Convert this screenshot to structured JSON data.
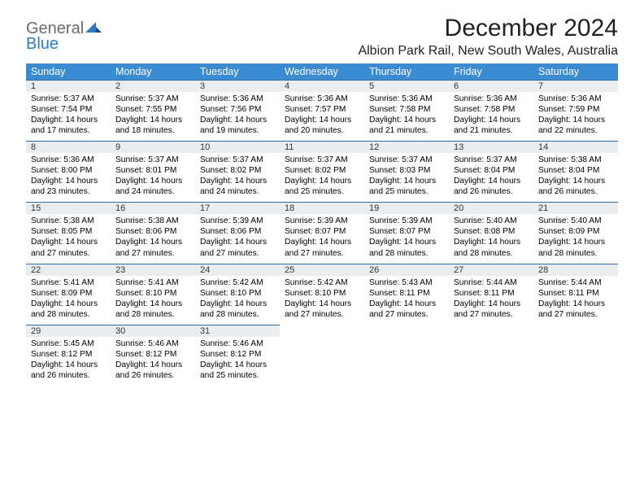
{
  "brand": {
    "word1": "General",
    "word2": "Blue"
  },
  "title": "December 2024",
  "location": "Albion Park Rail, New South Wales, Australia",
  "colors": {
    "header_bg": "#3b8bd0",
    "daynum_bg": "#e9edf0",
    "daynum_border": "#2f6aa3",
    "brand_gray": "#6a6a6a",
    "brand_blue": "#2f78c4"
  },
  "weekdays": [
    "Sunday",
    "Monday",
    "Tuesday",
    "Wednesday",
    "Thursday",
    "Friday",
    "Saturday"
  ],
  "days": [
    {
      "n": "1",
      "sr": "5:37 AM",
      "ss": "7:54 PM",
      "dl": "14 hours and 17 minutes."
    },
    {
      "n": "2",
      "sr": "5:37 AM",
      "ss": "7:55 PM",
      "dl": "14 hours and 18 minutes."
    },
    {
      "n": "3",
      "sr": "5:36 AM",
      "ss": "7:56 PM",
      "dl": "14 hours and 19 minutes."
    },
    {
      "n": "4",
      "sr": "5:36 AM",
      "ss": "7:57 PM",
      "dl": "14 hours and 20 minutes."
    },
    {
      "n": "5",
      "sr": "5:36 AM",
      "ss": "7:58 PM",
      "dl": "14 hours and 21 minutes."
    },
    {
      "n": "6",
      "sr": "5:36 AM",
      "ss": "7:58 PM",
      "dl": "14 hours and 21 minutes."
    },
    {
      "n": "7",
      "sr": "5:36 AM",
      "ss": "7:59 PM",
      "dl": "14 hours and 22 minutes."
    },
    {
      "n": "8",
      "sr": "5:36 AM",
      "ss": "8:00 PM",
      "dl": "14 hours and 23 minutes."
    },
    {
      "n": "9",
      "sr": "5:37 AM",
      "ss": "8:01 PM",
      "dl": "14 hours and 24 minutes."
    },
    {
      "n": "10",
      "sr": "5:37 AM",
      "ss": "8:02 PM",
      "dl": "14 hours and 24 minutes."
    },
    {
      "n": "11",
      "sr": "5:37 AM",
      "ss": "8:02 PM",
      "dl": "14 hours and 25 minutes."
    },
    {
      "n": "12",
      "sr": "5:37 AM",
      "ss": "8:03 PM",
      "dl": "14 hours and 25 minutes."
    },
    {
      "n": "13",
      "sr": "5:37 AM",
      "ss": "8:04 PM",
      "dl": "14 hours and 26 minutes."
    },
    {
      "n": "14",
      "sr": "5:38 AM",
      "ss": "8:04 PM",
      "dl": "14 hours and 26 minutes."
    },
    {
      "n": "15",
      "sr": "5:38 AM",
      "ss": "8:05 PM",
      "dl": "14 hours and 27 minutes."
    },
    {
      "n": "16",
      "sr": "5:38 AM",
      "ss": "8:06 PM",
      "dl": "14 hours and 27 minutes."
    },
    {
      "n": "17",
      "sr": "5:39 AM",
      "ss": "8:06 PM",
      "dl": "14 hours and 27 minutes."
    },
    {
      "n": "18",
      "sr": "5:39 AM",
      "ss": "8:07 PM",
      "dl": "14 hours and 27 minutes."
    },
    {
      "n": "19",
      "sr": "5:39 AM",
      "ss": "8:07 PM",
      "dl": "14 hours and 28 minutes."
    },
    {
      "n": "20",
      "sr": "5:40 AM",
      "ss": "8:08 PM",
      "dl": "14 hours and 28 minutes."
    },
    {
      "n": "21",
      "sr": "5:40 AM",
      "ss": "8:09 PM",
      "dl": "14 hours and 28 minutes."
    },
    {
      "n": "22",
      "sr": "5:41 AM",
      "ss": "8:09 PM",
      "dl": "14 hours and 28 minutes."
    },
    {
      "n": "23",
      "sr": "5:41 AM",
      "ss": "8:10 PM",
      "dl": "14 hours and 28 minutes."
    },
    {
      "n": "24",
      "sr": "5:42 AM",
      "ss": "8:10 PM",
      "dl": "14 hours and 28 minutes."
    },
    {
      "n": "25",
      "sr": "5:42 AM",
      "ss": "8:10 PM",
      "dl": "14 hours and 27 minutes."
    },
    {
      "n": "26",
      "sr": "5:43 AM",
      "ss": "8:11 PM",
      "dl": "14 hours and 27 minutes."
    },
    {
      "n": "27",
      "sr": "5:44 AM",
      "ss": "8:11 PM",
      "dl": "14 hours and 27 minutes."
    },
    {
      "n": "28",
      "sr": "5:44 AM",
      "ss": "8:11 PM",
      "dl": "14 hours and 27 minutes."
    },
    {
      "n": "29",
      "sr": "5:45 AM",
      "ss": "8:12 PM",
      "dl": "14 hours and 26 minutes."
    },
    {
      "n": "30",
      "sr": "5:46 AM",
      "ss": "8:12 PM",
      "dl": "14 hours and 26 minutes."
    },
    {
      "n": "31",
      "sr": "5:46 AM",
      "ss": "8:12 PM",
      "dl": "14 hours and 25 minutes."
    }
  ],
  "labels": {
    "sunrise": "Sunrise:",
    "sunset": "Sunset:",
    "daylight": "Daylight:"
  },
  "layout": {
    "start_weekday": 0,
    "cols": 7
  }
}
